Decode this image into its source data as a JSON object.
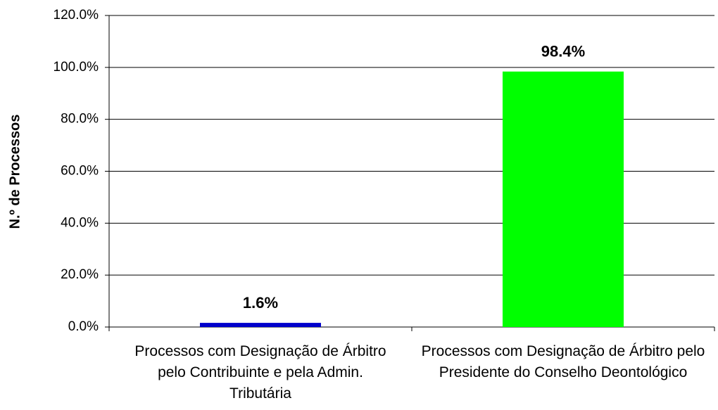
{
  "chart_data": {
    "type": "bar",
    "y_label": "N.º de Processos",
    "categories": [
      "Processos com Designação de Árbitro pelo Contribuinte e pela Admin. Tributária",
      "Processos com Designação de Árbitro pelo Presidente do Conselho Deontológico"
    ],
    "values": [
      1.6,
      98.4
    ],
    "value_labels": [
      "1.6%",
      "98.4%"
    ],
    "colors": [
      "#0000cc",
      "#00ff00"
    ],
    "ylim": [
      0,
      120
    ],
    "yticks": [
      {
        "value": 0,
        "label": "0.0%"
      },
      {
        "value": 20,
        "label": "20.0%"
      },
      {
        "value": 40,
        "label": "40.0%"
      },
      {
        "value": 60,
        "label": "60.0%"
      },
      {
        "value": 80,
        "label": "80.0%"
      },
      {
        "value": 100,
        "label": "100.0%"
      },
      {
        "value": 120,
        "label": "120.0%"
      }
    ],
    "grid": true
  }
}
